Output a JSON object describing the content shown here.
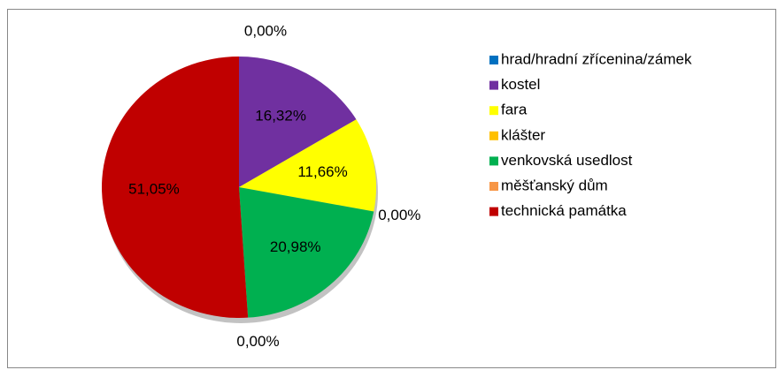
{
  "chart_data": {
    "type": "pie",
    "categories": [
      "hrad/hradní zřícenina/zámek",
      "kostel",
      "fara",
      "klášter",
      "venkovská usedlost",
      "měšťanský dům",
      "technická památka"
    ],
    "values": [
      0,
      16.32,
      11.66,
      0,
      20.98,
      0,
      51.05
    ],
    "value_labels": [
      "0,00%",
      "16,32%",
      "11,66%",
      "0,00%",
      "20,98%",
      "0,00%",
      "51,05%"
    ],
    "colors": [
      "#0070c0",
      "#7030a0",
      "#ffff00",
      "#ffc000",
      "#00b050",
      "#f79646",
      "#c00000"
    ],
    "legend": "right"
  }
}
